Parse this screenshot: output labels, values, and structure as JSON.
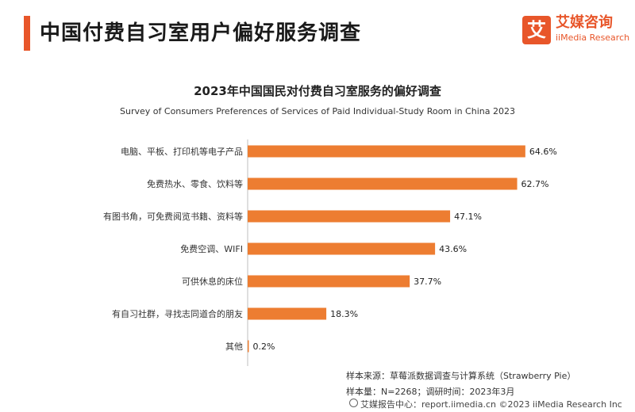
{
  "header": {
    "title": "中国付费自习室用户偏好服务调查",
    "logo_cn": "艾媒咨询",
    "logo_en": "iiMedia Research",
    "logo_glyph": "艾",
    "accent_color": "#e8562a"
  },
  "chart_data": {
    "type": "bar",
    "orientation": "horizontal",
    "title": "2023年中国国民对付费自习室服务的偏好调查",
    "subtitle": "Survey of Consumers Preferences of Services of Paid Individual-Study Room in China 2023",
    "categories": [
      "电脑、平板、打印机等电子产品",
      "免费热水、零食、饮料等",
      "有图书角，可免费阅览书籍、资料等",
      "免费空调、WIFI",
      "可供休息的床位",
      "有自习社群，寻找志同道合的朋友",
      "其他"
    ],
    "values": [
      64.6,
      62.7,
      47.1,
      43.6,
      37.7,
      18.3,
      0.2
    ],
    "value_labels": [
      "64.6%",
      "62.7%",
      "47.1%",
      "43.6%",
      "37.7%",
      "18.3%",
      "0.2%"
    ],
    "unit": "%",
    "xlim": [
      0,
      65
    ],
    "bar_color": "#ed7d31",
    "grid": false,
    "legend": "none"
  },
  "footer": {
    "source": "样本来源：草莓派数据调查与计算系统（Strawberry Pie）",
    "sample": "样本量：N=2268；调研时间：2023年3月",
    "bottom": "艾媒报告中心：report.iimedia.cn  ©2023  iiMedia Research  Inc"
  }
}
